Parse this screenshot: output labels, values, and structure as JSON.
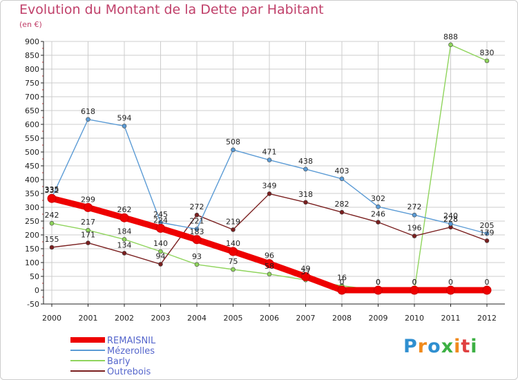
{
  "header": {
    "title": "Evolution du Montant de la Dette par Habitant",
    "subtitle": "(en €)"
  },
  "logo": {
    "text": "Proxiti",
    "colors": [
      "#2f8fd0",
      "#f08a1c",
      "#2f8fd0",
      "#3cb043",
      "#f08a1c",
      "#e04040",
      "#3cb043"
    ]
  },
  "colors": {
    "grid": "#cccccc",
    "axis": "#222222",
    "title": "#c0406a",
    "legend_text": "#5566cc"
  },
  "chart_data": {
    "type": "line",
    "title": "Evolution du Montant de la Dette par Habitant",
    "ylabel": "(en €)",
    "xlabel": "",
    "x": [
      "2000",
      "2001",
      "2002",
      "2003",
      "2004",
      "2005",
      "2006",
      "2007",
      "2008",
      "2009",
      "2010",
      "2011",
      "2012"
    ],
    "yticks": [
      -50,
      0,
      50,
      100,
      150,
      200,
      250,
      300,
      350,
      400,
      450,
      500,
      550,
      600,
      650,
      700,
      750,
      800,
      850,
      900
    ],
    "ylim": [
      -50,
      900
    ],
    "grid": true,
    "legend_position": "bottom-left",
    "series": [
      {
        "name": "REMAISNIL",
        "color": "#ee0000",
        "values": [
          332,
          299,
          262,
          224,
          183,
          140,
          96,
          49,
          0,
          0,
          0,
          0,
          0
        ],
        "labels": [
          "332",
          "299",
          "262",
          "224",
          "183",
          "140",
          "96",
          "49",
          "0",
          "0",
          "0",
          "0",
          "0"
        ]
      },
      {
        "name": "Mézerolles",
        "color": "#5b9bd5",
        "values": [
          335,
          618,
          594,
          245,
          221,
          508,
          471,
          438,
          403,
          302,
          272,
          240,
          205
        ],
        "labels": [
          "335",
          "618",
          "594",
          "245",
          "221",
          "508",
          "471",
          "438",
          "403",
          "302",
          "272",
          "240",
          "205"
        ]
      },
      {
        "name": "Barly",
        "color": "#8fd45c",
        "values": [
          242,
          217,
          184,
          140,
          93,
          75,
          58,
          37,
          16,
          0,
          0,
          888,
          830
        ],
        "labels": [
          "242",
          "217",
          "184",
          "140",
          "93",
          "75",
          "58",
          "37",
          "16",
          "0",
          "0",
          "888",
          "830"
        ]
      },
      {
        "name": "Outrebois",
        "color": "#7a1f1f",
        "values": [
          155,
          171,
          134,
          94,
          272,
          219,
          349,
          318,
          282,
          246,
          196,
          228,
          179
        ],
        "labels": [
          "155",
          "171",
          "134",
          "94",
          "272",
          "219",
          "349",
          "318",
          "282",
          "246",
          "196",
          "228",
          "179"
        ]
      }
    ]
  }
}
